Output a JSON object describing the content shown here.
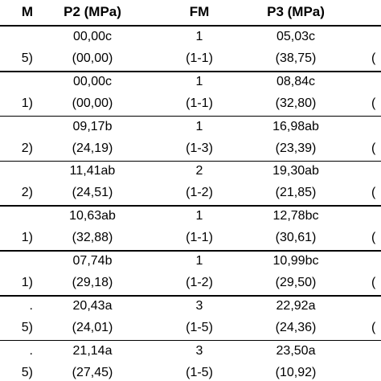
{
  "table": {
    "header": [
      "M",
      "P2 (MPa)",
      "FM",
      "P3 (MPa)",
      null
    ],
    "rows": [
      [
        null,
        "00,00c",
        "1",
        "05,03c",
        null
      ],
      [
        "5)",
        "(00,00)",
        "(1-1)",
        "(38,75)",
        "("
      ],
      [
        null,
        "00,00c",
        "1",
        "08,84c",
        null
      ],
      [
        "1)",
        "(00,00)",
        "(1-1)",
        "(32,80)",
        "("
      ],
      [
        null,
        "09,17b",
        "1",
        "16,98ab",
        null
      ],
      [
        "2)",
        "(24,19)",
        "(1-3)",
        "(23,39)",
        "("
      ],
      [
        null,
        "11,41ab",
        "2",
        "19,30ab",
        null
      ],
      [
        "2)",
        "(24,51)",
        "(1-2)",
        "(21,85)",
        "("
      ],
      [
        null,
        "10,63ab",
        "1",
        "12,78bc",
        null
      ],
      [
        "1)",
        "(32,88)",
        "(1-1)",
        "(30,61)",
        "("
      ],
      [
        null,
        "07,74b",
        "1",
        "10,99bc",
        null
      ],
      [
        "1)",
        "(29,18)",
        "(1-2)",
        "(29,50)",
        "("
      ],
      [
        ".",
        "20,43a",
        "3",
        "22,92a",
        null
      ],
      [
        "5)",
        "(24,01)",
        "(1-5)",
        "(24,36)",
        "("
      ],
      [
        ".",
        "21,14a",
        "3",
        "23,50a",
        null
      ],
      [
        "5)",
        "(27,45)",
        "(1-5)",
        "(10,92)",
        null
      ]
    ]
  }
}
